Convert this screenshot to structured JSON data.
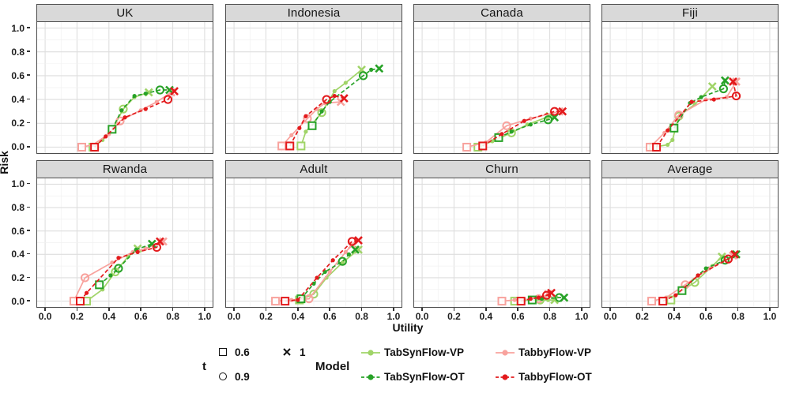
{
  "figure": {
    "xlabel": "Utility",
    "ylabel": "Risk"
  },
  "axis": {
    "xticks": [
      "0.0",
      "0.2",
      "0.4",
      "0.6",
      "0.8",
      "1.0"
    ],
    "yticks": [
      "1.0",
      "0.8",
      "0.6",
      "0.4",
      "0.2",
      "0.0"
    ],
    "xlim": [
      0,
      1
    ],
    "ylim": [
      0,
      1
    ]
  },
  "colors": {
    "strip_bg": "#d9d9d9",
    "panel_border": "#4d4d4d",
    "grid_major": "#dedede",
    "grid_minor": "#f1f1f1"
  },
  "legend": {
    "t": {
      "title": "t",
      "items": [
        {
          "marker": "square",
          "label": "0.6"
        },
        {
          "marker": "circle",
          "label": "0.9"
        },
        {
          "marker": "cross",
          "label": "1"
        }
      ]
    },
    "model": {
      "title": "Model",
      "items": [
        {
          "label": "TabSynFlow-VP",
          "color": "#a0d468",
          "dash": "solid"
        },
        {
          "label": "TabSynFlow-OT",
          "color": "#27a227",
          "dash": "dashed"
        },
        {
          "label": "TabbyFlow-VP",
          "color": "#f8a29d",
          "dash": "solid"
        },
        {
          "label": "TabbyFlow-OT",
          "color": "#e31a1c",
          "dash": "dashed"
        }
      ]
    }
  },
  "chart_data": {
    "type": "scatter",
    "facet_grid": {
      "rows": 2,
      "cols": 4
    },
    "xlabel": "Utility",
    "ylabel": "Risk",
    "xlim": [
      0,
      1
    ],
    "ylim": [
      0,
      1
    ],
    "marker_key": {
      "s": "t=0.6 open square",
      "c": "t=0.9 open circle",
      "x": "t=1 cross",
      "d": "intermediate t point"
    },
    "series_order": [
      "TabSynFlow-VP",
      "TabSynFlow-OT",
      "TabbyFlow-VP",
      "TabbyFlow-OT"
    ],
    "facets": [
      {
        "title": "UK",
        "series": {
          "TabSynFlow-VP": [
            [
              0.3,
              0.0,
              "s"
            ],
            [
              0.36,
              0.06,
              "d"
            ],
            [
              0.43,
              0.17,
              "d"
            ],
            [
              0.49,
              0.32,
              "c"
            ],
            [
              0.56,
              0.42,
              "d"
            ],
            [
              0.65,
              0.46,
              "x"
            ]
          ],
          "TabSynFlow-OT": [
            [
              0.42,
              0.15,
              "s"
            ],
            [
              0.48,
              0.31,
              "d"
            ],
            [
              0.56,
              0.43,
              "d"
            ],
            [
              0.63,
              0.45,
              "d"
            ],
            [
              0.72,
              0.48,
              "c"
            ],
            [
              0.78,
              0.48,
              "x"
            ]
          ],
          "TabbyFlow-VP": [
            [
              0.23,
              0.0,
              "s"
            ],
            [
              0.3,
              0.02,
              "d"
            ],
            [
              0.4,
              0.11,
              "d"
            ],
            [
              0.47,
              0.22,
              "c"
            ],
            [
              0.6,
              0.31,
              "d"
            ],
            [
              0.7,
              0.38,
              "d"
            ],
            [
              0.79,
              0.46,
              "x"
            ]
          ],
          "TabbyFlow-OT": [
            [
              0.31,
              0.0,
              "s"
            ],
            [
              0.38,
              0.09,
              "d"
            ],
            [
              0.5,
              0.25,
              "d"
            ],
            [
              0.63,
              0.32,
              "d"
            ],
            [
              0.77,
              0.4,
              "c"
            ],
            [
              0.81,
              0.47,
              "x"
            ]
          ]
        }
      },
      {
        "title": "Indonesia",
        "series": {
          "TabSynFlow-VP": [
            [
              0.42,
              0.01,
              "s"
            ],
            [
              0.45,
              0.13,
              "d"
            ],
            [
              0.55,
              0.29,
              "c"
            ],
            [
              0.63,
              0.47,
              "d"
            ],
            [
              0.7,
              0.54,
              "d"
            ],
            [
              0.8,
              0.65,
              "x"
            ]
          ],
          "TabSynFlow-OT": [
            [
              0.49,
              0.18,
              "s"
            ],
            [
              0.55,
              0.3,
              "d"
            ],
            [
              0.6,
              0.38,
              "d"
            ],
            [
              0.81,
              0.6,
              "c"
            ],
            [
              0.86,
              0.65,
              "d"
            ],
            [
              0.91,
              0.66,
              "x"
            ]
          ],
          "TabbyFlow-VP": [
            [
              0.3,
              0.01,
              "s"
            ],
            [
              0.36,
              0.1,
              "d"
            ],
            [
              0.46,
              0.24,
              "c"
            ],
            [
              0.52,
              0.32,
              "d"
            ],
            [
              0.57,
              0.37,
              "d"
            ],
            [
              0.67,
              0.38,
              "x"
            ]
          ],
          "TabbyFlow-OT": [
            [
              0.35,
              0.01,
              "s"
            ],
            [
              0.41,
              0.16,
              "d"
            ],
            [
              0.45,
              0.26,
              "d"
            ],
            [
              0.58,
              0.4,
              "c"
            ],
            [
              0.63,
              0.43,
              "d"
            ],
            [
              0.69,
              0.41,
              "x"
            ]
          ]
        }
      },
      {
        "title": "Canada",
        "series": {
          "TabSynFlow-VP": [
            [
              0.35,
              0.0,
              "s"
            ],
            [
              0.44,
              0.05,
              "d"
            ],
            [
              0.56,
              0.12,
              "c"
            ],
            [
              0.66,
              0.19,
              "d"
            ],
            [
              0.8,
              0.26,
              "x"
            ]
          ],
          "TabSynFlow-OT": [
            [
              0.48,
              0.08,
              "s"
            ],
            [
              0.56,
              0.13,
              "d"
            ],
            [
              0.68,
              0.19,
              "d"
            ],
            [
              0.79,
              0.23,
              "c"
            ],
            [
              0.83,
              0.25,
              "x"
            ]
          ],
          "TabbyFlow-VP": [
            [
              0.28,
              0.0,
              "s"
            ],
            [
              0.4,
              0.04,
              "d"
            ],
            [
              0.53,
              0.18,
              "c"
            ],
            [
              0.68,
              0.24,
              "d"
            ],
            [
              0.86,
              0.3,
              "x"
            ]
          ],
          "TabbyFlow-OT": [
            [
              0.38,
              0.01,
              "s"
            ],
            [
              0.5,
              0.11,
              "d"
            ],
            [
              0.64,
              0.22,
              "d"
            ],
            [
              0.83,
              0.3,
              "c"
            ],
            [
              0.88,
              0.3,
              "x"
            ]
          ]
        }
      },
      {
        "title": "Fiji",
        "series": {
          "TabSynFlow-VP": [
            [
              0.27,
              0.0,
              "s"
            ],
            [
              0.36,
              0.02,
              "d"
            ],
            [
              0.39,
              0.06,
              "d"
            ],
            [
              0.43,
              0.26,
              "c"
            ],
            [
              0.53,
              0.36,
              "d"
            ],
            [
              0.64,
              0.51,
              "x"
            ]
          ],
          "TabSynFlow-OT": [
            [
              0.4,
              0.16,
              "s"
            ],
            [
              0.5,
              0.37,
              "d"
            ],
            [
              0.57,
              0.42,
              "d"
            ],
            [
              0.71,
              0.49,
              "c"
            ],
            [
              0.72,
              0.56,
              "x"
            ]
          ],
          "TabbyFlow-VP": [
            [
              0.25,
              0.0,
              "s"
            ],
            [
              0.34,
              0.12,
              "d"
            ],
            [
              0.43,
              0.27,
              "c"
            ],
            [
              0.6,
              0.4,
              "d"
            ],
            [
              0.73,
              0.42,
              "d"
            ],
            [
              0.79,
              0.55,
              "x"
            ]
          ],
          "TabbyFlow-OT": [
            [
              0.29,
              0.0,
              "s"
            ],
            [
              0.36,
              0.14,
              "d"
            ],
            [
              0.51,
              0.38,
              "d"
            ],
            [
              0.65,
              0.4,
              "d"
            ],
            [
              0.79,
              0.43,
              "c"
            ],
            [
              0.77,
              0.55,
              "x"
            ]
          ]
        }
      },
      {
        "title": "Rwanda",
        "series": {
          "TabSynFlow-VP": [
            [
              0.26,
              0.0,
              "s"
            ],
            [
              0.36,
              0.1,
              "d"
            ],
            [
              0.44,
              0.25,
              "c"
            ],
            [
              0.52,
              0.38,
              "d"
            ],
            [
              0.58,
              0.45,
              "x"
            ]
          ],
          "TabSynFlow-OT": [
            [
              0.34,
              0.14,
              "s"
            ],
            [
              0.41,
              0.22,
              "d"
            ],
            [
              0.46,
              0.28,
              "c"
            ],
            [
              0.57,
              0.44,
              "d"
            ],
            [
              0.67,
              0.49,
              "x"
            ]
          ],
          "TabbyFlow-VP": [
            [
              0.18,
              0.0,
              "s"
            ],
            [
              0.25,
              0.2,
              "c"
            ],
            [
              0.42,
              0.33,
              "d"
            ],
            [
              0.55,
              0.42,
              "d"
            ],
            [
              0.63,
              0.45,
              "d"
            ],
            [
              0.74,
              0.51,
              "x"
            ]
          ],
          "TabbyFlow-OT": [
            [
              0.22,
              0.0,
              "s"
            ],
            [
              0.26,
              0.07,
              "d"
            ],
            [
              0.46,
              0.37,
              "d"
            ],
            [
              0.58,
              0.42,
              "d"
            ],
            [
              0.7,
              0.46,
              "c"
            ],
            [
              0.72,
              0.51,
              "x"
            ]
          ]
        }
      },
      {
        "title": "Adult",
        "series": {
          "TabSynFlow-VP": [
            [
              0.41,
              0.01,
              "s"
            ],
            [
              0.5,
              0.06,
              "c"
            ],
            [
              0.58,
              0.2,
              "d"
            ],
            [
              0.68,
              0.33,
              "d"
            ],
            [
              0.78,
              0.44,
              "x"
            ]
          ],
          "TabSynFlow-OT": [
            [
              0.42,
              0.02,
              "s"
            ],
            [
              0.5,
              0.15,
              "d"
            ],
            [
              0.57,
              0.25,
              "d"
            ],
            [
              0.68,
              0.34,
              "c"
            ],
            [
              0.72,
              0.4,
              "d"
            ],
            [
              0.76,
              0.44,
              "x"
            ]
          ],
          "TabbyFlow-VP": [
            [
              0.26,
              0.0,
              "s"
            ],
            [
              0.36,
              0.01,
              "d"
            ],
            [
              0.47,
              0.02,
              "c"
            ],
            [
              0.6,
              0.25,
              "d"
            ],
            [
              0.7,
              0.42,
              "d"
            ],
            [
              0.74,
              0.48,
              "x"
            ]
          ],
          "TabbyFlow-OT": [
            [
              0.32,
              0.0,
              "s"
            ],
            [
              0.4,
              0.01,
              "d"
            ],
            [
              0.52,
              0.2,
              "d"
            ],
            [
              0.62,
              0.35,
              "d"
            ],
            [
              0.74,
              0.51,
              "c"
            ],
            [
              0.78,
              0.52,
              "x"
            ]
          ]
        }
      },
      {
        "title": "Churn",
        "series": {
          "TabSynFlow-VP": [
            [
              0.58,
              0.0,
              "s"
            ],
            [
              0.64,
              0.01,
              "d"
            ],
            [
              0.74,
              0.01,
              "c"
            ],
            [
              0.79,
              0.01,
              "d"
            ],
            [
              0.83,
              0.01,
              "x"
            ]
          ],
          "TabSynFlow-OT": [
            [
              0.69,
              0.01,
              "s"
            ],
            [
              0.75,
              0.02,
              "d"
            ],
            [
              0.86,
              0.03,
              "c"
            ],
            [
              0.89,
              0.03,
              "x"
            ]
          ],
          "TabbyFlow-VP": [
            [
              0.5,
              0.0,
              "s"
            ],
            [
              0.58,
              0.01,
              "d"
            ],
            [
              0.73,
              0.02,
              "c"
            ],
            [
              0.76,
              0.04,
              "d"
            ],
            [
              0.79,
              0.06,
              "x"
            ]
          ],
          "TabbyFlow-OT": [
            [
              0.62,
              0.0,
              "s"
            ],
            [
              0.68,
              0.02,
              "d"
            ],
            [
              0.73,
              0.03,
              "d"
            ],
            [
              0.78,
              0.05,
              "c"
            ],
            [
              0.81,
              0.07,
              "x"
            ]
          ]
        }
      },
      {
        "title": "Average",
        "series": {
          "TabSynFlow-VP": [
            [
              0.38,
              0.01,
              "s"
            ],
            [
              0.46,
              0.1,
              "d"
            ],
            [
              0.53,
              0.16,
              "c"
            ],
            [
              0.64,
              0.3,
              "d"
            ],
            [
              0.7,
              0.38,
              "x"
            ]
          ],
          "TabSynFlow-OT": [
            [
              0.45,
              0.09,
              "s"
            ],
            [
              0.55,
              0.22,
              "d"
            ],
            [
              0.6,
              0.28,
              "d"
            ],
            [
              0.72,
              0.35,
              "c"
            ],
            [
              0.79,
              0.4,
              "x"
            ]
          ],
          "TabbyFlow-VP": [
            [
              0.26,
              0.0,
              "s"
            ],
            [
              0.35,
              0.03,
              "d"
            ],
            [
              0.47,
              0.14,
              "c"
            ],
            [
              0.62,
              0.28,
              "d"
            ],
            [
              0.77,
              0.39,
              "x"
            ]
          ],
          "TabbyFlow-OT": [
            [
              0.33,
              0.0,
              "s"
            ],
            [
              0.41,
              0.05,
              "d"
            ],
            [
              0.55,
              0.22,
              "d"
            ],
            [
              0.74,
              0.36,
              "c"
            ],
            [
              0.78,
              0.4,
              "x"
            ]
          ]
        }
      }
    ]
  }
}
